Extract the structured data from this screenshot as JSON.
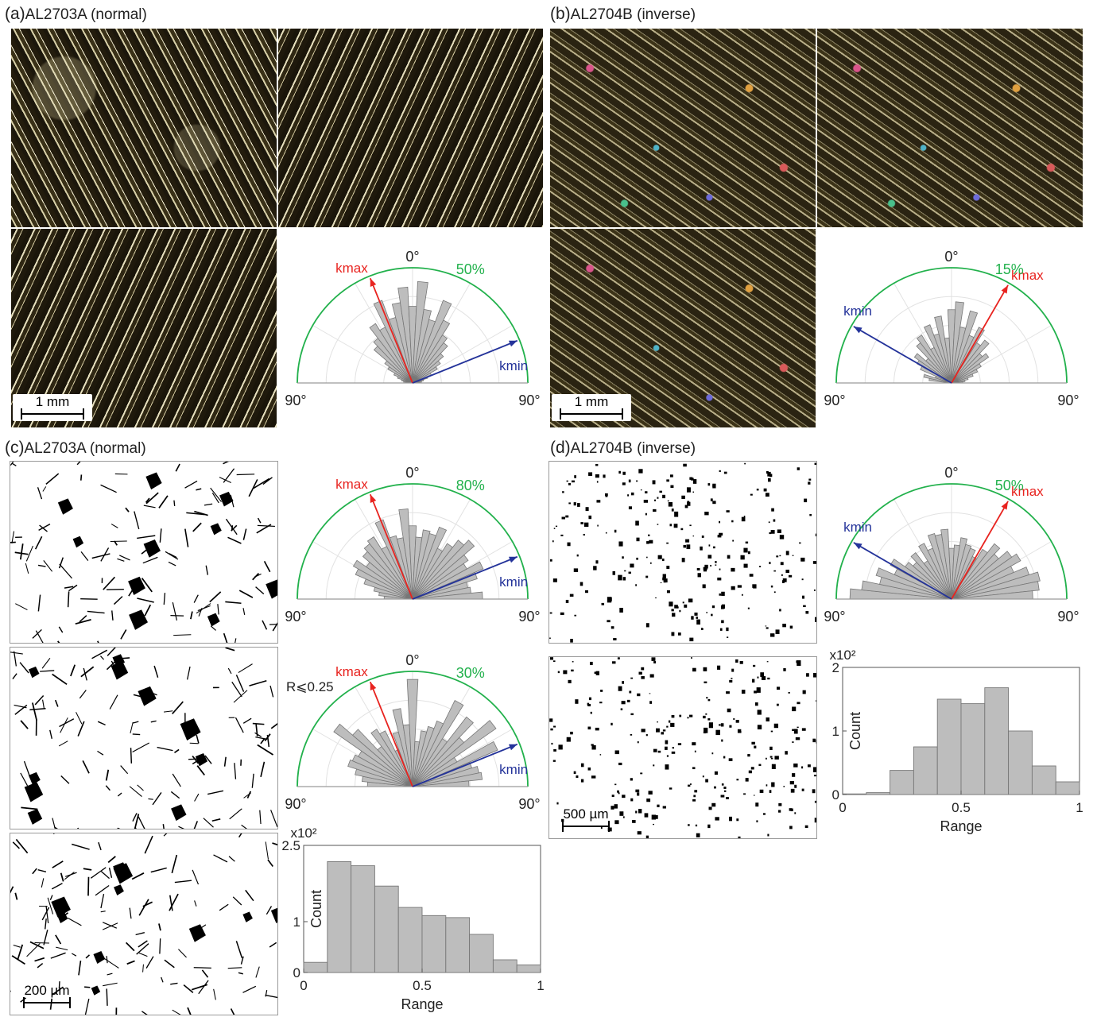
{
  "panels": {
    "a": {
      "letter": "(a)",
      "title": "AL2703A (normal)",
      "scale_label": "1 mm"
    },
    "b": {
      "letter": "(b)",
      "title": "AL2704B (inverse)",
      "scale_label": "1 mm"
    },
    "c": {
      "letter": "(c)",
      "title": "AL2703A (normal)",
      "scale_label": "200 µm"
    },
    "d": {
      "letter": "(d)",
      "title": "AL2704B (inverse)",
      "scale_label": "500 µm"
    }
  },
  "colors": {
    "kmax": "#e8231f",
    "kmin": "#24339a",
    "envelope": "#22b14c",
    "bar_fill": "#bdbdbd",
    "bar_stroke": "#777777"
  },
  "rose_diagrams": [
    {
      "id": "rose-a",
      "top_label": "0°",
      "left_label": "90°",
      "right_label": "90°",
      "max_label": "50%",
      "kmax_label": "kmax",
      "kmin_label": "kmin",
      "kmax_angle": -22,
      "kmin_angle": 68,
      "bars": [
        0.05,
        0.08,
        0.1,
        0.14,
        0.18,
        0.25,
        0.3,
        0.45,
        0.5,
        0.62,
        0.55,
        0.78,
        0.6,
        0.72,
        0.85,
        0.68,
        0.9,
        0.66,
        0.58,
        0.78,
        0.62,
        0.5,
        0.45,
        0.36,
        0.3,
        0.25,
        0.18,
        0.14,
        0.1,
        0.08,
        0.05
      ]
    },
    {
      "id": "rose-b",
      "top_label": "0°",
      "left_label": "90°",
      "right_label": "90°",
      "max_label": "15%",
      "kmax_label": "kmax",
      "kmin_label": "kmin",
      "kmax_angle": 30,
      "kmin_angle": -60,
      "bars": [
        0.05,
        0.2,
        0.25,
        0.15,
        0.3,
        0.35,
        0.4,
        0.3,
        0.45,
        0.5,
        0.35,
        0.55,
        0.45,
        0.6,
        0.4,
        0.65,
        0.72,
        0.5,
        0.66,
        0.45,
        0.55,
        0.42,
        0.48,
        0.36,
        0.4,
        0.3,
        0.25,
        0.2,
        0.15,
        0.12,
        0.1
      ]
    },
    {
      "id": "rose-c1",
      "top_label": "0°",
      "left_label": "90°",
      "right_label": "90°",
      "max_label": "80%",
      "kmax_label": "kmax",
      "kmin_label": "kmin",
      "kmax_angle": -22,
      "kmin_angle": 68,
      "bars": [
        0.25,
        0.3,
        0.35,
        0.45,
        0.55,
        0.6,
        0.5,
        0.58,
        0.62,
        0.65,
        0.52,
        0.75,
        0.58,
        0.55,
        0.8,
        0.65,
        0.55,
        0.62,
        0.6,
        0.68,
        0.5,
        0.58,
        0.66,
        0.72,
        0.6,
        0.55,
        0.68,
        0.6,
        0.5,
        0.52,
        0.62
      ]
    },
    {
      "id": "rose-c2",
      "top_label": "0°",
      "left_label": "90°",
      "right_label": "90°",
      "max_label": "30%",
      "kmax_label": "kmax",
      "kmin_label": "kmin",
      "note": "R⩽0.25",
      "kmax_angle": -22,
      "kmin_angle": 68,
      "bars": [
        0.4,
        0.45,
        0.52,
        0.6,
        0.58,
        0.55,
        0.85,
        0.7,
        0.45,
        0.6,
        0.55,
        0.35,
        0.5,
        0.7,
        0.55,
        0.95,
        0.4,
        0.5,
        0.55,
        0.62,
        0.85,
        0.5,
        0.78,
        0.6,
        0.9,
        0.45,
        0.82,
        0.55,
        0.6,
        0.62,
        0.5
      ]
    },
    {
      "id": "rose-d",
      "top_label": "0°",
      "left_label": "90°",
      "right_label": "90°",
      "max_label": "50%",
      "kmax_label": "kmax",
      "kmin_label": "kmin",
      "kmax_angle": 30,
      "kmin_angle": -60,
      "bars": [
        0.9,
        0.8,
        0.65,
        0.7,
        0.55,
        0.62,
        0.5,
        0.45,
        0.52,
        0.4,
        0.55,
        0.48,
        0.6,
        0.58,
        0.62,
        0.45,
        0.48,
        0.55,
        0.5,
        0.48,
        0.42,
        0.52,
        0.62,
        0.55,
        0.65,
        0.7,
        0.6,
        0.72,
        0.8,
        0.78,
        0.72
      ]
    }
  ],
  "chart_data": [
    {
      "type": "bar",
      "id": "hist-c",
      "title": "",
      "multiplier_label": "x10²",
      "xlabel": "Range",
      "ylabel": "Count",
      "x_ticks": [
        "0",
        "0.5",
        "1"
      ],
      "y_ticks": [
        "0",
        "1",
        "2.5"
      ],
      "xlim": [
        0,
        1
      ],
      "ylim": [
        0,
        2.5
      ],
      "bin_edges": [
        0,
        0.1,
        0.2,
        0.3,
        0.4,
        0.5,
        0.6,
        0.7,
        0.8,
        0.9,
        1.0
      ],
      "values": [
        0.2,
        2.18,
        2.1,
        1.7,
        1.28,
        1.12,
        1.08,
        0.75,
        0.25,
        0.15
      ]
    },
    {
      "type": "bar",
      "id": "hist-d",
      "title": "",
      "multiplier_label": "x10²",
      "xlabel": "Range",
      "ylabel": "Count",
      "x_ticks": [
        "0",
        "0.5",
        "1"
      ],
      "y_ticks": [
        "0",
        "1",
        "2"
      ],
      "xlim": [
        0,
        1
      ],
      "ylim": [
        0,
        2
      ],
      "bin_edges": [
        0,
        0.1,
        0.2,
        0.3,
        0.4,
        0.5,
        0.6,
        0.7,
        0.8,
        0.9,
        1.0
      ],
      "values": [
        0.01,
        0.03,
        0.38,
        0.75,
        1.5,
        1.43,
        1.68,
        1.0,
        0.45,
        0.2
      ]
    }
  ]
}
